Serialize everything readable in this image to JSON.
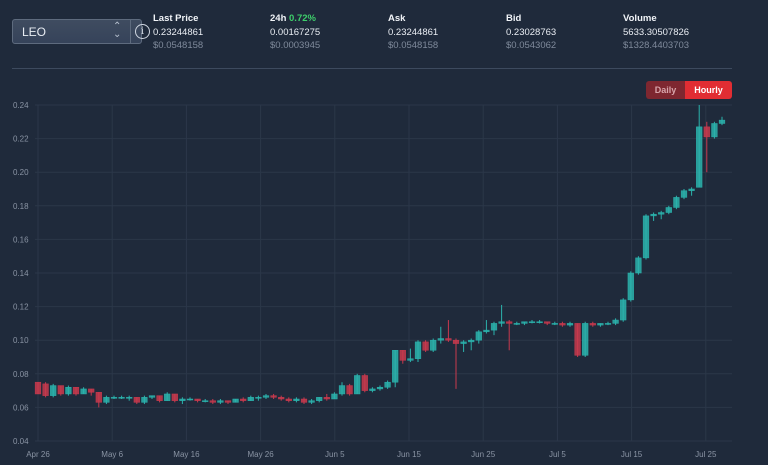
{
  "selector": {
    "value": "LEO",
    "chevron": "⌃⌄",
    "info": "i"
  },
  "stats": [
    {
      "label": "Last Price",
      "value": "0.23244861",
      "sub": "$0.0548158"
    },
    {
      "label": "24h",
      "change": "0.72%",
      "value": "0.00167275",
      "sub": "$0.0003945"
    },
    {
      "label": "Ask",
      "value": "0.23244861",
      "sub": "$0.0548158"
    },
    {
      "label": "Bid",
      "value": "0.23028763",
      "sub": "$0.0543062"
    },
    {
      "label": "Volume",
      "value": "5633.30507826",
      "sub": "$1328.4403703"
    }
  ],
  "toggle": {
    "daily": "Daily",
    "hourly": "Hourly",
    "active": "Hourly"
  },
  "colors": {
    "up": "#2bb3ad",
    "down": "#c8394e",
    "background": "#1f2a3b"
  },
  "chart_data": {
    "type": "candlestick",
    "ylim": [
      0.04,
      0.24
    ],
    "yticks": [
      "0.24",
      "0.22",
      "0.20",
      "0.18",
      "0.16",
      "0.14",
      "0.12",
      "0.10",
      "0.08",
      "0.06",
      "0.04"
    ],
    "xticks": [
      "Apr 26",
      "May 6",
      "May 16",
      "May 26",
      "Jun 5",
      "Jun 15",
      "Jun 25",
      "Jul 5",
      "Jul 15",
      "Jul 25"
    ],
    "candles": [
      [
        0.075,
        0.075,
        0.068,
        0.068
      ],
      [
        0.074,
        0.075,
        0.066,
        0.067
      ],
      [
        0.067,
        0.074,
        0.066,
        0.073
      ],
      [
        0.073,
        0.073,
        0.067,
        0.068
      ],
      [
        0.068,
        0.073,
        0.067,
        0.072
      ],
      [
        0.072,
        0.072,
        0.067,
        0.068
      ],
      [
        0.068,
        0.072,
        0.068,
        0.071
      ],
      [
        0.071,
        0.071,
        0.067,
        0.069
      ],
      [
        0.069,
        0.069,
        0.06,
        0.063
      ],
      [
        0.063,
        0.067,
        0.062,
        0.066
      ],
      [
        0.066,
        0.067,
        0.065,
        0.066
      ],
      [
        0.066,
        0.067,
        0.065,
        0.066
      ],
      [
        0.066,
        0.067,
        0.064,
        0.066
      ],
      [
        0.066,
        0.066,
        0.062,
        0.063
      ],
      [
        0.063,
        0.067,
        0.062,
        0.066
      ],
      [
        0.066,
        0.067,
        0.065,
        0.067
      ],
      [
        0.067,
        0.067,
        0.063,
        0.064
      ],
      [
        0.064,
        0.069,
        0.064,
        0.068
      ],
      [
        0.068,
        0.068,
        0.063,
        0.064
      ],
      [
        0.064,
        0.066,
        0.062,
        0.065
      ],
      [
        0.065,
        0.066,
        0.064,
        0.065
      ],
      [
        0.065,
        0.065,
        0.063,
        0.064
      ],
      [
        0.064,
        0.065,
        0.063,
        0.064
      ],
      [
        0.064,
        0.065,
        0.062,
        0.063
      ],
      [
        0.063,
        0.065,
        0.062,
        0.064
      ],
      [
        0.064,
        0.064,
        0.062,
        0.063
      ],
      [
        0.063,
        0.065,
        0.063,
        0.065
      ],
      [
        0.065,
        0.066,
        0.063,
        0.064
      ],
      [
        0.064,
        0.067,
        0.064,
        0.066
      ],
      [
        0.066,
        0.067,
        0.064,
        0.066
      ],
      [
        0.066,
        0.068,
        0.065,
        0.067
      ],
      [
        0.067,
        0.068,
        0.065,
        0.066
      ],
      [
        0.066,
        0.067,
        0.064,
        0.065
      ],
      [
        0.065,
        0.066,
        0.063,
        0.064
      ],
      [
        0.064,
        0.066,
        0.063,
        0.065
      ],
      [
        0.065,
        0.066,
        0.062,
        0.063
      ],
      [
        0.063,
        0.065,
        0.062,
        0.064
      ],
      [
        0.064,
        0.066,
        0.063,
        0.066
      ],
      [
        0.066,
        0.068,
        0.064,
        0.065
      ],
      [
        0.065,
        0.069,
        0.065,
        0.068
      ],
      [
        0.068,
        0.075,
        0.067,
        0.073
      ],
      [
        0.073,
        0.074,
        0.067,
        0.068
      ],
      [
        0.068,
        0.08,
        0.068,
        0.079
      ],
      [
        0.079,
        0.08,
        0.069,
        0.07
      ],
      [
        0.07,
        0.072,
        0.069,
        0.071
      ],
      [
        0.071,
        0.073,
        0.07,
        0.072
      ],
      [
        0.072,
        0.076,
        0.071,
        0.075
      ],
      [
        0.075,
        0.094,
        0.072,
        0.094
      ],
      [
        0.094,
        0.094,
        0.086,
        0.088
      ],
      [
        0.088,
        0.095,
        0.087,
        0.089
      ],
      [
        0.089,
        0.1,
        0.087,
        0.099
      ],
      [
        0.099,
        0.1,
        0.093,
        0.094
      ],
      [
        0.094,
        0.101,
        0.093,
        0.1
      ],
      [
        0.1,
        0.108,
        0.098,
        0.101
      ],
      [
        0.101,
        0.112,
        0.099,
        0.1
      ],
      [
        0.1,
        0.101,
        0.071,
        0.098
      ],
      [
        0.098,
        0.1,
        0.093,
        0.099
      ],
      [
        0.099,
        0.101,
        0.094,
        0.1
      ],
      [
        0.1,
        0.106,
        0.098,
        0.105
      ],
      [
        0.105,
        0.112,
        0.104,
        0.106
      ],
      [
        0.106,
        0.111,
        0.103,
        0.11
      ],
      [
        0.11,
        0.121,
        0.108,
        0.111
      ],
      [
        0.111,
        0.112,
        0.094,
        0.11
      ],
      [
        0.11,
        0.111,
        0.109,
        0.11
      ],
      [
        0.11,
        0.111,
        0.109,
        0.111
      ],
      [
        0.111,
        0.112,
        0.11,
        0.111
      ],
      [
        0.111,
        0.112,
        0.11,
        0.111
      ],
      [
        0.111,
        0.111,
        0.109,
        0.11
      ],
      [
        0.11,
        0.111,
        0.109,
        0.11
      ],
      [
        0.11,
        0.111,
        0.108,
        0.109
      ],
      [
        0.109,
        0.111,
        0.108,
        0.11
      ],
      [
        0.11,
        0.11,
        0.09,
        0.091
      ],
      [
        0.091,
        0.111,
        0.09,
        0.11
      ],
      [
        0.11,
        0.111,
        0.108,
        0.109
      ],
      [
        0.109,
        0.11,
        0.108,
        0.11
      ],
      [
        0.11,
        0.111,
        0.109,
        0.11
      ],
      [
        0.11,
        0.113,
        0.109,
        0.112
      ],
      [
        0.112,
        0.125,
        0.111,
        0.124
      ],
      [
        0.124,
        0.141,
        0.123,
        0.14
      ],
      [
        0.14,
        0.15,
        0.139,
        0.149
      ],
      [
        0.149,
        0.175,
        0.148,
        0.174
      ],
      [
        0.174,
        0.176,
        0.171,
        0.175
      ],
      [
        0.175,
        0.177,
        0.172,
        0.176
      ],
      [
        0.176,
        0.18,
        0.175,
        0.179
      ],
      [
        0.179,
        0.186,
        0.178,
        0.185
      ],
      [
        0.185,
        0.19,
        0.184,
        0.189
      ],
      [
        0.189,
        0.191,
        0.186,
        0.19
      ],
      [
        0.191,
        0.24,
        0.191,
        0.227
      ],
      [
        0.227,
        0.23,
        0.2,
        0.221
      ],
      [
        0.221,
        0.23,
        0.22,
        0.229
      ],
      [
        0.229,
        0.233,
        0.228,
        0.231
      ]
    ]
  }
}
